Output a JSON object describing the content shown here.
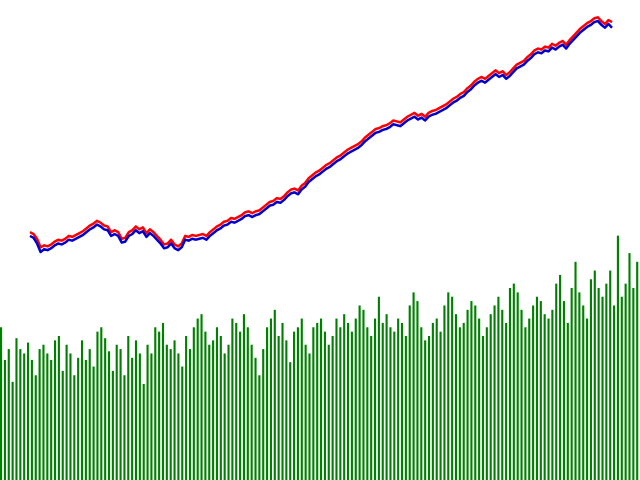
{
  "chart_data": {
    "type": "line",
    "grid": false,
    "legend": "none",
    "price_series": [
      {
        "color": "#ff0000",
        "values": [
          240,
          238,
          233,
          224,
          226,
          225,
          227,
          230,
          232,
          231,
          233,
          236,
          235,
          237,
          239,
          241,
          244,
          247,
          249,
          252,
          250,
          247,
          246,
          240,
          242,
          240,
          233,
          234,
          240,
          242,
          246,
          243,
          245,
          239,
          243,
          240,
          236,
          232,
          227,
          228,
          232,
          227,
          225,
          228,
          236,
          235,
          237,
          236,
          237,
          238,
          236,
          240,
          243,
          246,
          248,
          251,
          252,
          255,
          254,
          256,
          258,
          261,
          262,
          260,
          262,
          263,
          266,
          269,
          272,
          273,
          276,
          275,
          278,
          282,
          285,
          286,
          284,
          289,
          292,
          297,
          300,
          303,
          305,
          308,
          311,
          313,
          316,
          319,
          321,
          324,
          327,
          329,
          331,
          333,
          336,
          340,
          343,
          346,
          349,
          350,
          352,
          353,
          355,
          358,
          357,
          356,
          359,
          362,
          364,
          366,
          363,
          365,
          362,
          366,
          368,
          369,
          371,
          373,
          375,
          378,
          381,
          383,
          386,
          388,
          392,
          395,
          399,
          402,
          404,
          402,
          405,
          408,
          411,
          408,
          410,
          406,
          409,
          413,
          417,
          419,
          421,
          425,
          428,
          432,
          434,
          433,
          436,
          435,
          439,
          437,
          440,
          442,
          438,
          443,
          447,
          451,
          455,
          458,
          461,
          463,
          466,
          467,
          463,
          460,
          464,
          462
        ]
      },
      {
        "color": "#0000cc",
        "values": [
          236,
          234,
          228,
          219,
          222,
          221,
          223,
          226,
          228,
          227,
          229,
          232,
          231,
          233,
          235,
          237,
          240,
          243,
          245,
          248,
          246,
          243,
          242,
          236,
          238,
          236,
          229,
          230,
          236,
          238,
          242,
          239,
          241,
          235,
          239,
          236,
          232,
          228,
          223,
          224,
          228,
          223,
          221,
          224,
          232,
          231,
          233,
          232,
          233,
          234,
          232,
          236,
          239,
          242,
          244,
          247,
          248,
          251,
          250,
          252,
          254,
          257,
          258,
          256,
          258,
          259,
          262,
          265,
          268,
          269,
          272,
          271,
          274,
          278,
          281,
          282,
          280,
          285,
          288,
          293,
          296,
          299,
          301,
          304,
          307,
          309,
          312,
          315,
          317,
          320,
          323,
          325,
          327,
          329,
          332,
          336,
          339,
          342,
          345,
          346,
          348,
          349,
          351,
          354,
          353,
          352,
          355,
          358,
          360,
          362,
          359,
          361,
          358,
          362,
          364,
          365,
          367,
          369,
          371,
          374,
          377,
          379,
          382,
          384,
          388,
          391,
          395,
          398,
          400,
          398,
          401,
          404,
          407,
          404,
          406,
          402,
          405,
          409,
          413,
          415,
          417,
          421,
          424,
          428,
          430,
          429,
          432,
          431,
          435,
          433,
          436,
          438,
          434,
          439,
          443,
          447,
          451,
          454,
          457,
          459,
          462,
          463,
          459,
          456,
          460,
          456
        ]
      }
    ],
    "volume": {
      "color": "#008000",
      "values": [
        70,
        55,
        60,
        45,
        65,
        60,
        58,
        63,
        55,
        48,
        60,
        62,
        58,
        55,
        64,
        66,
        50,
        62,
        58,
        48,
        56,
        64,
        55,
        60,
        52,
        68,
        70,
        65,
        59,
        50,
        62,
        60,
        48,
        66,
        56,
        64,
        58,
        44,
        62,
        58,
        70,
        68,
        72,
        62,
        60,
        64,
        58,
        52,
        66,
        60,
        70,
        74,
        76,
        68,
        62,
        64,
        70,
        66,
        58,
        62,
        74,
        72,
        68,
        76,
        70,
        62,
        56,
        48,
        60,
        70,
        74,
        78,
        66,
        72,
        64,
        54,
        68,
        70,
        74,
        62,
        58,
        70,
        72,
        74,
        68,
        62,
        66,
        74,
        70,
        76,
        72,
        68,
        74,
        80,
        78,
        70,
        66,
        74,
        84,
        72,
        76,
        70,
        68,
        74,
        72,
        66,
        80,
        86,
        82,
        70,
        64,
        66,
        72,
        74,
        68,
        80,
        86,
        84,
        76,
        70,
        72,
        78,
        82,
        80,
        74,
        66,
        70,
        76,
        80,
        84,
        78,
        72,
        88,
        90,
        86,
        78,
        70,
        74,
        80,
        84,
        82,
        76,
        74,
        78,
        90,
        94,
        82,
        72,
        88,
        100,
        86,
        80,
        74,
        92,
        96,
        88,
        84,
        90,
        96,
        80,
        112,
        84,
        90,
        104,
        88,
        100
      ]
    }
  }
}
